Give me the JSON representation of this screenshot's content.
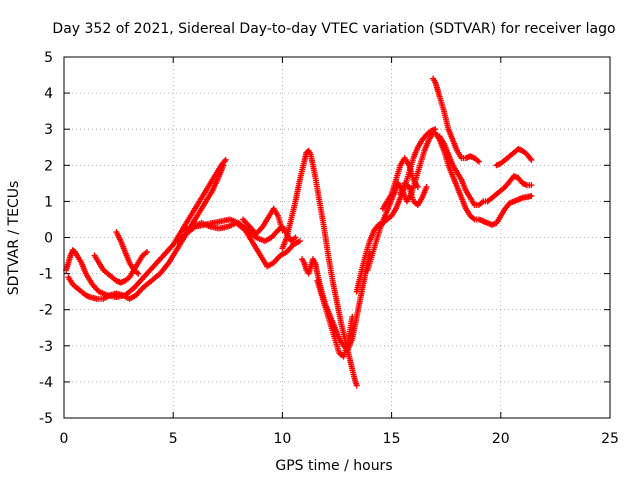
{
  "chart_data": {
    "type": "scatter",
    "title": "Day 352 of 2021, Sidereal Day-to-day VTEC variation (SDTVAR) for receiver lago",
    "xlabel": "GPS time / hours",
    "ylabel": "SDTVAR / TECUs",
    "xlim": [
      0,
      25
    ],
    "ylim": [
      -5,
      5
    ],
    "xticks": [
      0,
      5,
      10,
      15,
      20,
      25
    ],
    "yticks": [
      -5,
      -4,
      -3,
      -2,
      -1,
      0,
      1,
      2,
      3,
      4,
      5
    ],
    "grid": true,
    "legend": "none",
    "marker": "+",
    "series_color": "#ff0000",
    "series": [
      {
        "x": [
          0.1,
          0.2,
          0.3,
          0.4,
          0.5,
          0.6,
          0.8,
          1.0,
          1.3,
          1.6,
          2.0,
          2.4,
          2.8,
          3.2,
          3.5,
          3.8,
          4.1,
          4.4,
          4.7,
          5.0,
          5.3,
          5.6,
          5.9,
          6.2,
          6.5,
          6.8,
          7.0,
          7.2,
          7.4
        ],
        "y": [
          -0.9,
          -0.7,
          -0.5,
          -0.35,
          -0.4,
          -0.5,
          -0.7,
          -1.0,
          -1.3,
          -1.5,
          -1.6,
          -1.65,
          -1.6,
          -1.4,
          -1.2,
          -1.0,
          -0.8,
          -0.6,
          -0.4,
          -0.2,
          0.1,
          0.4,
          0.7,
          1.0,
          1.3,
          1.6,
          1.8,
          2.0,
          2.15
        ]
      },
      {
        "x": [
          0.2,
          0.4,
          0.6,
          0.8,
          1.0,
          1.2,
          1.5,
          1.8,
          2.1,
          2.4,
          2.7,
          3.0,
          3.3,
          3.6,
          4.0,
          4.4,
          4.8,
          5.2,
          5.6,
          6.0,
          6.4,
          6.8,
          7.1,
          7.3
        ],
        "y": [
          -1.1,
          -1.3,
          -1.4,
          -1.5,
          -1.6,
          -1.65,
          -1.7,
          -1.7,
          -1.6,
          -1.55,
          -1.6,
          -1.7,
          -1.6,
          -1.4,
          -1.2,
          -1.0,
          -0.7,
          -0.3,
          0.1,
          0.5,
          0.9,
          1.3,
          1.7,
          2.0
        ]
      },
      {
        "x": [
          1.4,
          1.6,
          1.8,
          2.0,
          2.2,
          2.4,
          2.6,
          2.8,
          3.0,
          3.2,
          3.4,
          3.6,
          3.8
        ],
        "y": [
          -0.5,
          -0.7,
          -0.9,
          -1.0,
          -1.1,
          -1.2,
          -1.25,
          -1.2,
          -1.1,
          -0.9,
          -0.7,
          -0.5,
          -0.4
        ]
      },
      {
        "x": [
          2.4,
          2.6,
          2.8,
          3.0,
          3.2,
          3.4
        ],
        "y": [
          0.15,
          -0.1,
          -0.4,
          -0.7,
          -0.9,
          -1.0
        ]
      },
      {
        "x": [
          5.2,
          5.6,
          6.0,
          6.4,
          6.8,
          7.2,
          7.6,
          8.0,
          8.4,
          8.8,
          9.2,
          9.5,
          9.8,
          10.0,
          10.2,
          10.4,
          10.6
        ],
        "y": [
          -0.1,
          0.1,
          0.3,
          0.35,
          0.4,
          0.45,
          0.5,
          0.4,
          0.2,
          0.0,
          -0.1,
          0.0,
          0.2,
          0.3,
          0.1,
          -0.1,
          0.0
        ]
      },
      {
        "x": [
          5.5,
          5.9,
          6.3,
          6.7,
          7.1,
          7.5,
          7.9,
          8.3,
          8.7,
          9.0,
          9.3,
          9.6,
          9.9,
          10.2,
          10.5,
          10.8
        ],
        "y": [
          0.2,
          0.3,
          0.4,
          0.3,
          0.25,
          0.3,
          0.4,
          0.2,
          -0.2,
          -0.5,
          -0.8,
          -0.7,
          -0.5,
          -0.4,
          -0.2,
          -0.1
        ]
      },
      {
        "x": [
          8.2,
          8.5,
          8.8,
          9.1,
          9.4,
          9.6,
          9.8,
          10.0
        ],
        "y": [
          0.5,
          0.3,
          0.1,
          0.3,
          0.6,
          0.8,
          0.6,
          0.2
        ]
      },
      {
        "x": [
          10.0,
          10.2,
          10.4,
          10.6,
          10.8,
          11.0,
          11.1,
          11.2,
          11.3,
          11.5,
          11.7,
          11.9,
          12.1,
          12.3,
          12.5,
          12.7,
          12.9,
          13.1,
          13.3,
          13.4
        ],
        "y": [
          -0.3,
          0.0,
          0.5,
          1.0,
          1.6,
          2.1,
          2.35,
          2.4,
          2.3,
          1.7,
          1.0,
          0.3,
          -0.5,
          -1.2,
          -1.8,
          -2.4,
          -2.9,
          -3.4,
          -3.9,
          -4.1
        ]
      },
      {
        "x": [
          10.9,
          11.0,
          11.1,
          11.2,
          11.3,
          11.4,
          11.5,
          11.6,
          11.8,
          12.0,
          12.2,
          12.4,
          12.6,
          12.8,
          13.0,
          13.2,
          13.4,
          13.6,
          13.8,
          14.0
        ],
        "y": [
          -0.6,
          -0.7,
          -0.9,
          -1.0,
          -0.8,
          -0.6,
          -0.7,
          -1.0,
          -1.5,
          -1.9,
          -2.2,
          -2.5,
          -2.8,
          -3.0,
          -3.1,
          -2.8,
          -2.2,
          -1.6,
          -1.0,
          -0.4
        ]
      },
      {
        "x": [
          11.6,
          11.8,
          12.0,
          12.2,
          12.4,
          12.6,
          12.8,
          13.0,
          13.2
        ],
        "y": [
          -1.2,
          -1.6,
          -2.0,
          -2.4,
          -2.8,
          -3.2,
          -3.3,
          -2.9,
          -2.2
        ]
      },
      {
        "x": [
          13.4,
          13.6,
          13.8,
          14.0,
          14.2,
          14.4,
          14.6,
          14.8,
          15.0,
          15.2,
          15.4,
          15.6,
          15.8,
          16.0,
          16.2,
          16.4,
          16.6,
          16.8,
          17.0
        ],
        "y": [
          -1.5,
          -1.0,
          -0.5,
          -0.1,
          0.2,
          0.35,
          0.4,
          0.5,
          0.6,
          0.8,
          1.1,
          1.4,
          1.8,
          2.2,
          2.5,
          2.7,
          2.85,
          2.95,
          3.0
        ]
      },
      {
        "x": [
          13.9,
          14.1,
          14.3,
          14.5,
          14.7,
          14.9,
          15.1,
          15.3,
          15.5,
          15.7,
          15.9,
          16.1,
          16.3,
          16.5,
          16.7,
          16.9
        ],
        "y": [
          -0.9,
          -0.5,
          -0.1,
          0.3,
          0.6,
          0.9,
          1.2,
          1.5,
          1.3,
          1.0,
          1.2,
          1.6,
          2.0,
          2.4,
          2.7,
          2.9
        ]
      },
      {
        "x": [
          14.6,
          14.8,
          15.0,
          15.2,
          15.4,
          15.6,
          15.8,
          16.0,
          16.2
        ],
        "y": [
          0.8,
          1.0,
          1.2,
          1.6,
          2.0,
          2.2,
          2.0,
          1.6,
          1.4
        ]
      },
      {
        "x": [
          15.4,
          15.6,
          15.8,
          16.0,
          16.2,
          16.4,
          16.6
        ],
        "y": [
          1.2,
          1.5,
          1.4,
          1.0,
          0.9,
          1.1,
          1.4
        ]
      },
      {
        "x": [
          16.9,
          17.0,
          17.1,
          17.2,
          17.4,
          17.6,
          17.8,
          18.0,
          18.2,
          18.4,
          18.6,
          18.8,
          19.0
        ],
        "y": [
          4.4,
          4.3,
          4.1,
          3.9,
          3.5,
          3.0,
          2.7,
          2.4,
          2.2,
          2.2,
          2.25,
          2.2,
          2.1
        ]
      },
      {
        "x": [
          17.0,
          17.2,
          17.4,
          17.6,
          17.8,
          18.0,
          18.2,
          18.4,
          18.6,
          18.8,
          19.0,
          19.2,
          19.4,
          19.6,
          19.8,
          20.0,
          20.2,
          20.4,
          20.6,
          20.8,
          21.0,
          21.2,
          21.4
        ],
        "y": [
          2.9,
          2.7,
          2.4,
          2.0,
          1.7,
          1.4,
          1.1,
          0.8,
          0.6,
          0.5,
          0.5,
          0.45,
          0.4,
          0.35,
          0.4,
          0.6,
          0.8,
          0.95,
          1.0,
          1.05,
          1.1,
          1.12,
          1.15
        ]
      },
      {
        "x": [
          17.2,
          17.4,
          17.6,
          17.8,
          18.0,
          18.2,
          18.4,
          18.6,
          18.8,
          19.0,
          19.2,
          19.4,
          19.6,
          19.8,
          20.0,
          20.2,
          20.4,
          20.6,
          20.8,
          21.0,
          21.2,
          21.4
        ],
        "y": [
          2.8,
          2.6,
          2.3,
          2.0,
          1.8,
          1.6,
          1.3,
          1.1,
          0.9,
          0.9,
          1.0,
          1.0,
          1.1,
          1.2,
          1.3,
          1.4,
          1.55,
          1.7,
          1.65,
          1.5,
          1.45,
          1.45
        ]
      },
      {
        "x": [
          19.8,
          20.0,
          20.2,
          20.4,
          20.6,
          20.8,
          21.0,
          21.2,
          21.4
        ],
        "y": [
          2.0,
          2.05,
          2.15,
          2.25,
          2.35,
          2.45,
          2.4,
          2.3,
          2.15
        ]
      }
    ]
  }
}
